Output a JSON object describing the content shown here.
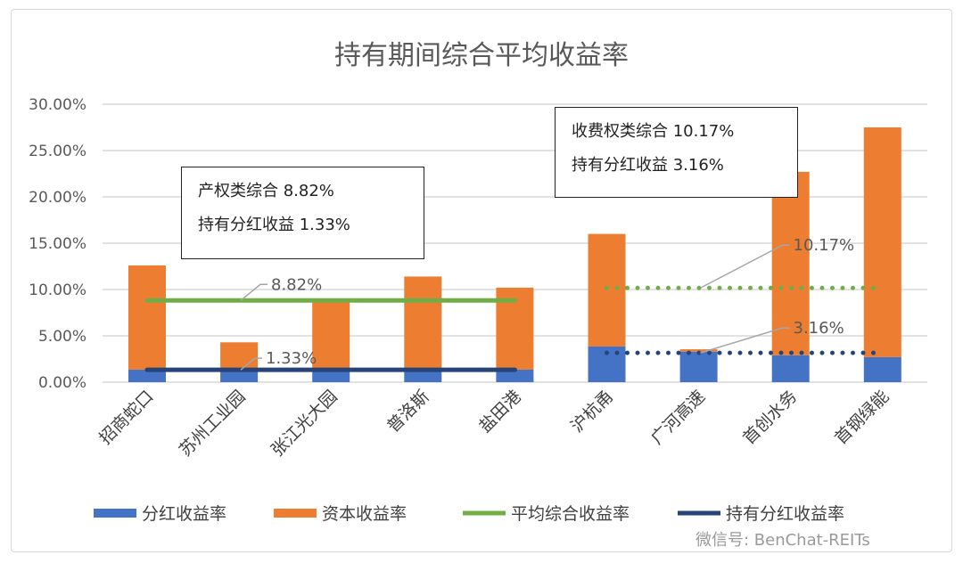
{
  "chart_data": {
    "type": "bar",
    "stacked": true,
    "title": "持有期间综合平均收益率",
    "categories": [
      "招商蛇口",
      "苏州工业园",
      "张江光大园",
      "普洛斯",
      "盐田港",
      "沪杭甬",
      "广河高速",
      "首创水务",
      "首钢绿能"
    ],
    "series": [
      {
        "name": "分红收益率",
        "color": "#4472c4",
        "values": [
          1.35,
          1.3,
          1.2,
          1.2,
          1.35,
          3.85,
          3.3,
          2.9,
          2.7
        ]
      },
      {
        "name": "资本收益率",
        "color": "#ed7d31",
        "values": [
          11.25,
          3.0,
          7.5,
          10.2,
          8.85,
          12.15,
          0.25,
          19.8,
          24.8
        ]
      }
    ],
    "lines": [
      {
        "name": "平均综合收益率",
        "color": "#70ad47",
        "style": "solid",
        "value": 8.82,
        "label": "8.82%",
        "from": "招商蛇口",
        "to": "盐田港"
      },
      {
        "name": "持有分红收益率",
        "color": "#264478",
        "style": "solid",
        "value": 1.33,
        "label": "1.33%",
        "from": "招商蛇口",
        "to": "盐田港"
      },
      {
        "color": "#70ad47",
        "style": "dotted",
        "value": 10.17,
        "label": "10.17%",
        "from": "沪杭甬",
        "to": "首钢绿能"
      },
      {
        "color": "#264478",
        "style": "dotted",
        "value": 3.16,
        "label": "3.16%",
        "from": "沪杭甬",
        "to": "首钢绿能"
      }
    ],
    "ylim": [
      0,
      30
    ],
    "yticks": [
      "0.00%",
      "5.00%",
      "10.00%",
      "15.00%",
      "20.00%",
      "25.00%",
      "30.00%"
    ],
    "grid": true,
    "legend": "bottom",
    "legend_entries": [
      "分红收益率",
      "资本收益率",
      "平均综合收益率",
      "持有分红收益率"
    ],
    "annotations": {
      "left_box": [
        "产权类综合 8.82%",
        "持有分红收益 1.33%"
      ],
      "right_box": [
        "收费权类综合 10.17%",
        "持有分红收益 3.16%"
      ]
    }
  },
  "watermark": "微信号: BenChat-REITs"
}
